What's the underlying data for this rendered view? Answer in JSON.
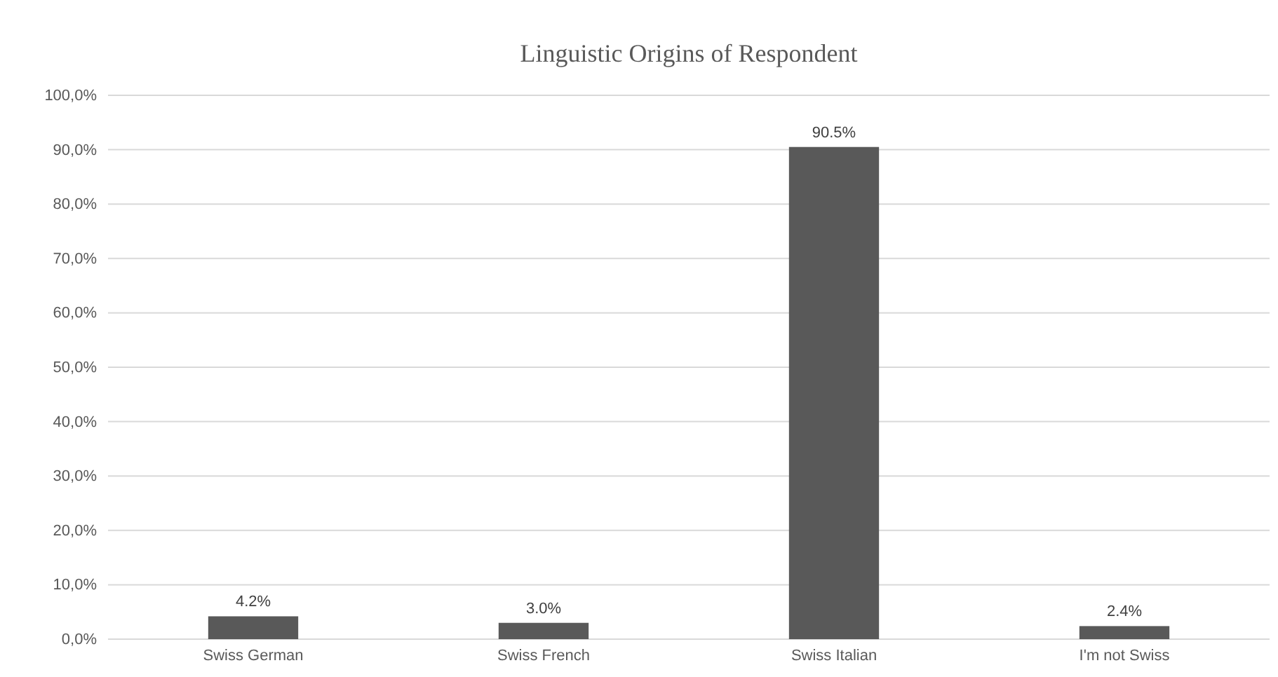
{
  "chart_data": {
    "type": "bar",
    "title": "Linguistic Origins of Respondent",
    "categories": [
      "Swiss German",
      "Swiss French",
      "Swiss Italian",
      "I'm not Swiss"
    ],
    "values": [
      4.2,
      3.0,
      90.5,
      2.4
    ],
    "value_labels": [
      "4.2%",
      "3.0%",
      "90.5%",
      "2.4%"
    ],
    "color": "#595959",
    "ylim": [
      0,
      100
    ],
    "yticks": [
      {
        "value": 0,
        "label": "0,0%"
      },
      {
        "value": 10,
        "label": "10,0%"
      },
      {
        "value": 20,
        "label": "20,0%"
      },
      {
        "value": 30,
        "label": "30,0%"
      },
      {
        "value": 40,
        "label": "40,0%"
      },
      {
        "value": 50,
        "label": "50,0%"
      },
      {
        "value": 60,
        "label": "60,0%"
      },
      {
        "value": 70,
        "label": "70,0%"
      },
      {
        "value": 80,
        "label": "80,0%"
      },
      {
        "value": 90,
        "label": "90,0%"
      },
      {
        "value": 100,
        "label": "100,0%"
      }
    ],
    "grid": "y"
  }
}
